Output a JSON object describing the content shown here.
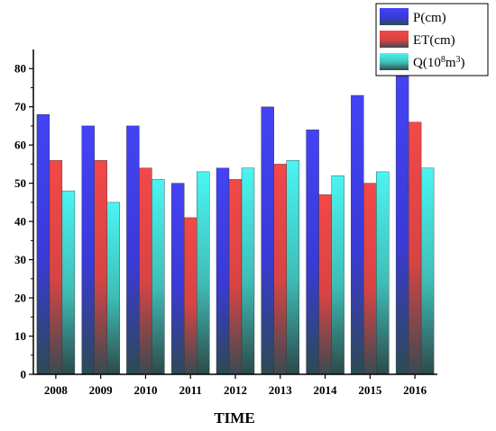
{
  "chart_data": {
    "type": "bar",
    "xlabel": "TIME",
    "ylabel": "",
    "ylim": [
      0,
      85
    ],
    "yticks": [
      0,
      10,
      20,
      30,
      40,
      50,
      60,
      70,
      80
    ],
    "categories": [
      "2008",
      "2009",
      "2010",
      "2011",
      "2012",
      "2013",
      "2014",
      "2015",
      "2016"
    ],
    "series": [
      {
        "name": "P(cm)",
        "color": "#4343f5",
        "values": [
          68,
          65,
          65,
          50,
          54,
          70,
          64,
          73,
          78
        ]
      },
      {
        "name": "ET(cm)",
        "color": "#f24848",
        "values": [
          56,
          56,
          54,
          41,
          51,
          55,
          47,
          50,
          66
        ]
      },
      {
        "name": "Q(10^8m^3)",
        "color": "#48f2f2",
        "values": [
          48,
          45,
          51,
          53,
          54,
          56,
          52,
          53,
          54
        ]
      }
    ],
    "legend_position": "top-right",
    "grid": false
  }
}
